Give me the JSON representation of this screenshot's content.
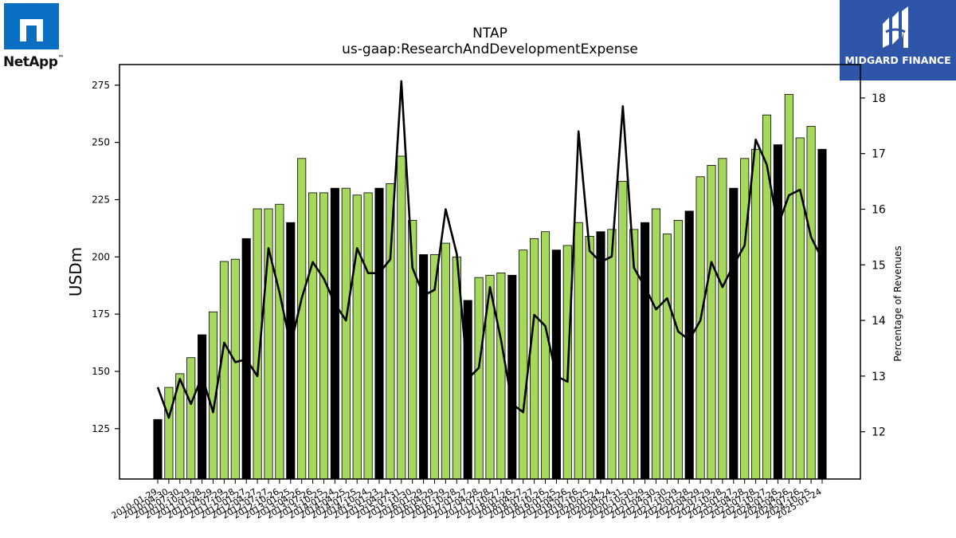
{
  "page": {
    "title": "NTAP",
    "subtitle": "us-gaap:ResearchAndDevelopmentExpense"
  },
  "brands": {
    "left_text": "NetApp",
    "left_mark": "™",
    "right_text": "MIDGARD FINANCE",
    "left_color": "#0a6ec2",
    "right_color": "#2f55a8"
  },
  "chart_data": {
    "type": "bar",
    "title": "NTAP",
    "subtitle": "us-gaap:ResearchAndDevelopmentExpense",
    "ylabel": "USDm",
    "y2label": "Percentage of Revenues",
    "ylim": [
      103,
      284
    ],
    "y2lim": [
      11.15,
      18.6
    ],
    "yticks": [
      125,
      150,
      175,
      200,
      225,
      250,
      275
    ],
    "y2ticks": [
      12,
      13,
      14,
      15,
      16,
      17,
      18
    ],
    "x_labels": [
      "2010-01-29",
      "2010-04-30",
      "2010-07-30",
      "2010-10-29",
      "2011-01-28",
      "2011-04-29",
      "2011-07-29",
      "2011-10-28",
      "2012-01-27",
      "2012-04-27",
      "2012-07-27",
      "2012-10-26",
      "2013-01-25",
      "2013-04-26",
      "2013-07-26",
      "2013-10-25",
      "2014-01-24",
      "2014-04-25",
      "2014-07-25",
      "2014-10-24",
      "2015-01-23",
      "2015-04-24",
      "2015-07-31",
      "2015-10-30",
      "2016-01-29",
      "2016-04-29",
      "2016-07-29",
      "2016-10-28",
      "2017-01-27",
      "2017-04-28",
      "2017-07-28",
      "2017-10-27",
      "2018-01-26",
      "2018-04-27",
      "2018-07-27",
      "2018-10-26",
      "2019-01-25",
      "2019-04-26",
      "2019-07-26",
      "2019-10-25",
      "2020-01-24",
      "2020-04-24",
      "2020-07-31",
      "2020-10-30",
      "2021-01-29",
      "2021-04-30",
      "2021-07-30",
      "2021-10-29",
      "2022-01-28",
      "2022-04-29",
      "2022-07-29",
      "2022-10-28",
      "2023-01-27",
      "2023-04-28",
      "2023-07-28",
      "2023-10-27",
      "2024-01-26",
      "2024-04-26",
      "2024-07-26",
      "2024-10-25",
      "2025-01-24"
    ],
    "rd_expense": [
      129,
      143,
      149,
      156,
      166,
      176,
      198,
      199,
      208,
      221,
      221,
      223,
      215,
      243,
      228,
      228,
      230,
      230,
      227,
      228,
      230,
      232,
      244,
      216,
      201,
      201,
      206,
      200,
      181,
      191,
      192,
      193,
      192,
      203,
      208,
      211,
      203,
      205,
      215,
      209,
      211,
      212,
      233,
      212,
      215,
      221,
      210,
      216,
      220,
      235,
      240,
      243,
      230,
      243,
      247,
      262,
      249,
      271,
      252,
      257,
      247
    ],
    "annual_flags": [
      1,
      0,
      0,
      0,
      1,
      0,
      0,
      0,
      1,
      0,
      0,
      0,
      1,
      0,
      0,
      0,
      1,
      0,
      0,
      0,
      1,
      0,
      0,
      0,
      1,
      0,
      0,
      0,
      1,
      0,
      0,
      0,
      1,
      0,
      0,
      0,
      1,
      0,
      0,
      0,
      1,
      0,
      0,
      0,
      1,
      0,
      0,
      0,
      1,
      0,
      0,
      0,
      1,
      0,
      0,
      0,
      1,
      0,
      0,
      0,
      1
    ],
    "pct_revenue": [
      12.8,
      12.25,
      12.95,
      12.5,
      13.0,
      12.35,
      13.6,
      13.25,
      13.3,
      13.0,
      15.3,
      14.5,
      13.55,
      14.4,
      15.05,
      14.75,
      14.3,
      14.0,
      15.3,
      14.85,
      14.85,
      15.1,
      18.3,
      14.95,
      14.45,
      14.55,
      16.0,
      15.2,
      12.95,
      13.15,
      14.6,
      13.65,
      12.5,
      12.35,
      14.1,
      13.9,
      13.0,
      12.9,
      17.4,
      15.25,
      15.05,
      15.15,
      17.85,
      14.95,
      14.6,
      14.2,
      14.4,
      13.8,
      13.65,
      14.0,
      15.05,
      14.6,
      15.0,
      15.35,
      17.25,
      16.8,
      15.7,
      16.25,
      16.35,
      15.5,
      15.1
    ],
    "series": [
      {
        "name": "",
        "kind": "bar"
      },
      {
        "name": "",
        "kind": "line"
      }
    ],
    "colors": {
      "bar_quarter": "#a6d85e",
      "bar_annual": "#000000",
      "bar_edge": "#000000",
      "line": "#000000"
    }
  }
}
